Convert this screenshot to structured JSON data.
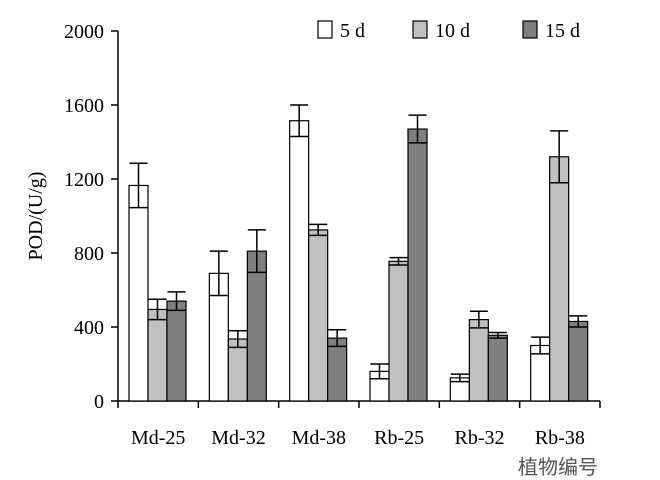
{
  "chart_data": {
    "type": "bar",
    "title": "",
    "xlabel": "植物编号",
    "ylabel": "POD/(U/g)",
    "ylim": [
      0,
      2000
    ],
    "yticks": [
      0,
      400,
      800,
      1200,
      1600,
      2000
    ],
    "categories": [
      "Md-25",
      "Md-32",
      "Md-38",
      "Rb-25",
      "Rb-32",
      "Rb-38"
    ],
    "series": [
      {
        "name": "5 d",
        "color": "#ffffff",
        "values": [
          1165,
          690,
          1515,
          160,
          125,
          300
        ],
        "errors": [
          120,
          120,
          85,
          40,
          20,
          45
        ]
      },
      {
        "name": "10 d",
        "color": "#c0c0c0",
        "values": [
          495,
          335,
          925,
          755,
          440,
          1320
        ],
        "errors": [
          55,
          45,
          30,
          20,
          45,
          140
        ]
      },
      {
        "name": "15 d",
        "color": "#7f7f7f",
        "values": [
          540,
          810,
          340,
          1470,
          355,
          430
        ],
        "errors": [
          50,
          115,
          45,
          75,
          15,
          30
        ]
      }
    ],
    "legend_position": "top-right",
    "grid": false
  }
}
